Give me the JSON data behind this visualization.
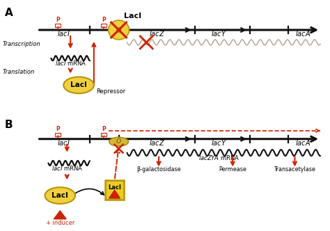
{
  "bg_color": "#ffffff",
  "dna_color": "#111111",
  "red_color": "#cc2200",
  "gold_color": "#f0d040",
  "gold_edge": "#b8940a",
  "wavy_color_A": "#b8a898",
  "wavy_color_B": "#111111",
  "label_A": "A",
  "label_B": "B",
  "operator_label": "O",
  "lacI_protein": "LacI",
  "repressor_label": "Repressor",
  "transcription_label": "Transcription",
  "translation_label": "Translation",
  "lacI_mRNA_label": "lacI mRNA",
  "lacZYA_mRNA_label": "lacZYA mRNA",
  "bgalactosidase_label": "β-galactosidase",
  "permease_label": "Permease",
  "transacetylase_label": "Transacetylase",
  "inducer_label": "+ inducer",
  "P_label": "P"
}
